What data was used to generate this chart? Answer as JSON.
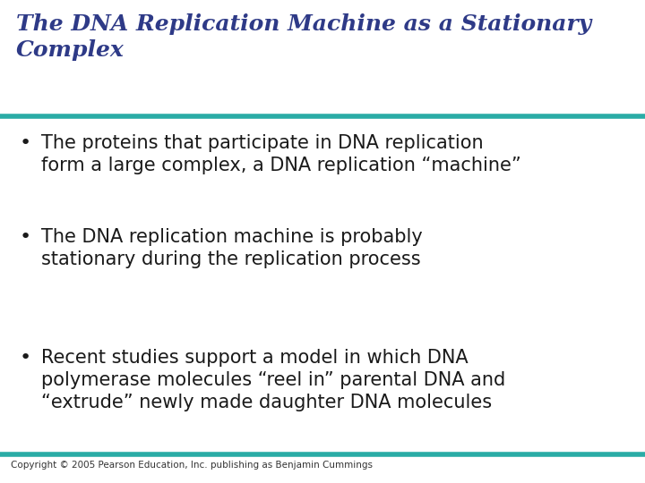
{
  "title_line1": "The DNA Replication Machine as a Stationary",
  "title_line2": "Complex",
  "title_color": "#2E3A87",
  "title_fontsize": 18,
  "title_style": "italic",
  "title_weight": "bold",
  "separator_color": "#2AACA6",
  "separator_linewidth": 4.0,
  "background_color": "#FFFFFF",
  "bullet_color": "#1A1A1A",
  "bullet_fontsize": 15,
  "bullets": [
    "The proteins that participate in DNA replication\nform a large complex, a DNA replication “machine”",
    "The DNA replication machine is probably\nstationary during the replication process",
    "Recent studies support a model in which DNA\npolymerase molecules “reel in” parental DNA and\n“extrude” newly made daughter DNA molecules"
  ],
  "footer_text": "Copyright © 2005 Pearson Education, Inc. publishing as Benjamin Cummings",
  "footer_fontsize": 7.5,
  "footer_color": "#333333"
}
